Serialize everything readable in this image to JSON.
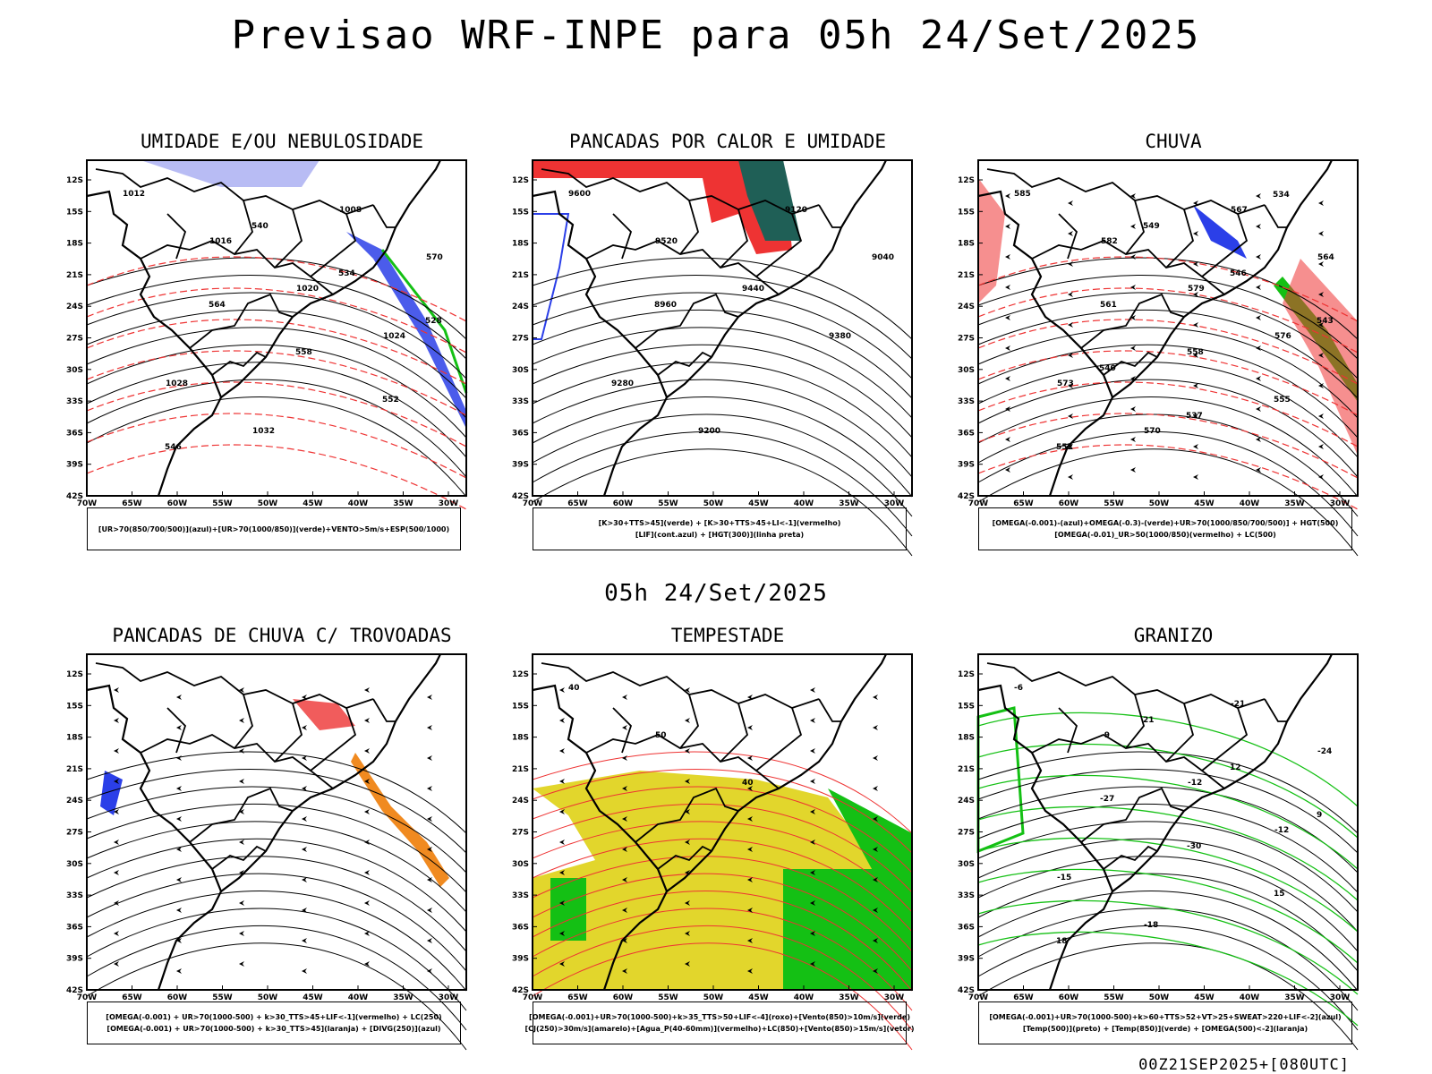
{
  "title": "Previsao WRF-INPE  para 05h 24/Set/2025",
  "middle_title": "05h 24/Set/2025",
  "run_stamp": "00Z21SEP2025+[080UTC]",
  "lat_labels": [
    "12S",
    "15S",
    "18S",
    "21S",
    "24S",
    "27S",
    "30S",
    "33S",
    "36S",
    "39S",
    "42S"
  ],
  "lon_labels": [
    "70W",
    "65W",
    "60W",
    "55W",
    "50W",
    "45W",
    "40W",
    "35W",
    "30W"
  ],
  "colors": {
    "blue": "#2b3fe8",
    "green": "#14c014",
    "red": "#ee3333",
    "orange": "#f08a20",
    "yellow": "#e2d62c",
    "darkgreen": "#1f5f56",
    "lightblue": "#9aa0f0"
  },
  "panels": [
    {
      "title": "UMIDADE E/OU NEBULOSIDADE",
      "caption": [
        "[UR>70(850/700/500)](azul)+[UR>70(1000/850)](verde)+VENTO>5m/s+ESP(500/1000)"
      ],
      "contour_labels": [
        "1012",
        "1016",
        "1020",
        "1024",
        "1028",
        "1032",
        "1008",
        "570",
        "564",
        "558",
        "552",
        "546",
        "540",
        "534",
        "528"
      ]
    },
    {
      "title": "PANCADAS POR CALOR E UMIDADE",
      "caption": [
        "[K>30+TTS>45](verde) + [K>30+TTS>45+LI<-1](vermelho)",
        "[LIF](cont.azul) + [HGT(300)](linha preta)"
      ],
      "contour_labels": [
        "9600",
        "9520",
        "9440",
        "9380",
        "9280",
        "9200",
        "9120",
        "9040",
        "8960"
      ]
    },
    {
      "title": "CHUVA",
      "caption": [
        "[OMEGA(-0.001)-(azul)+OMEGA(-0.3)-(verde)+UR>70(1000/850/700/500)] + HGT(500)",
        "[OMEGA(-0.01)_UR>50(1000/850)(vermelho) + LC(500)"
      ],
      "contour_labels": [
        "585",
        "582",
        "579",
        "576",
        "573",
        "570",
        "567",
        "564",
        "561",
        "558",
        "555",
        "552",
        "549",
        "546",
        "543",
        "540",
        "537",
        "534"
      ]
    },
    {
      "title": "PANCADAS DE CHUVA C/ TROVOADAS",
      "caption": [
        "[OMEGA(-0.001) + UR>70(1000-500) + k>30_TTS>45+LIF<-1](vermelho) + LC(250)",
        "[OMEGA(-0.001) + UR>70(1000-500) + k>30_TTS>45](laranja) + [DIVG(250)](azul)"
      ],
      "contour_labels": []
    },
    {
      "title": "TEMPESTADE",
      "caption": [
        "[OMEGA(-0.001)+UR>70(1000-500)+k>35_TTS>50+LIF<-4](roxo)+[Vento(850)>10m/s](verde)",
        "[CJ(250)>30m/s](amarelo)+[Agua_P(40-60mm)](vermelho)+LC(850)+[Vento(850)>15m/s](vetor)"
      ],
      "contour_labels": [
        "40",
        "50",
        "40"
      ]
    },
    {
      "title": "GRANIZO",
      "caption": [
        "[OMEGA(-0.001)+UR>70(1000-500)+k>60+TTS>52+VT>25+SWEAT>220+LIF<-2](azul)",
        "[Temp(500)](preto) + [Temp(850)](verde) + [OMEGA(500)<-2](laranja)"
      ],
      "contour_labels": [
        "-6",
        "-9",
        "-12",
        "-12",
        "-15",
        "-18",
        "-21",
        "-24",
        "-27",
        "-30",
        "15",
        "18",
        "21",
        "12",
        "9"
      ]
    }
  ]
}
